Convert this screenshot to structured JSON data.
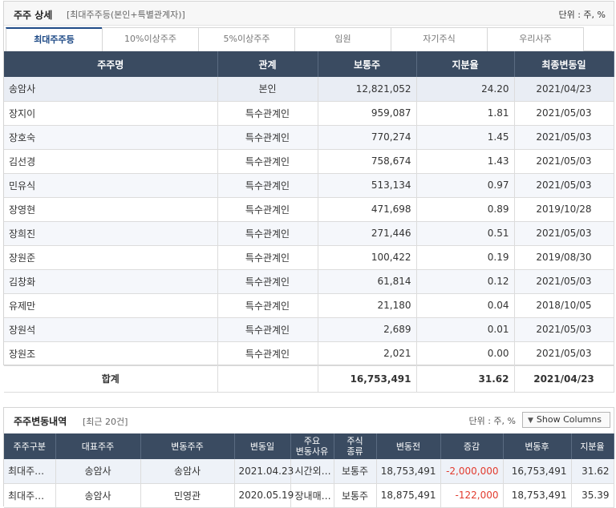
{
  "top": {
    "title": "주주 상세",
    "subtitle": "[최대주주등(본인+특별관계자)]",
    "unit": "단위 : 주, %",
    "tabs": [
      "최대주주등",
      "10%이상주주",
      "5%이상주주",
      "임원",
      "자기주식",
      "우리사주"
    ],
    "columns": [
      "주주명",
      "관계",
      "보통주",
      "지분율",
      "최종변동일"
    ],
    "rows": [
      {
        "name": "송암사",
        "relation": "본인",
        "shares": "12,821,052",
        "ratio": "24.20",
        "date": "2021/04/23"
      },
      {
        "name": "장지이",
        "relation": "특수관계인",
        "shares": "959,087",
        "ratio": "1.81",
        "date": "2021/05/03"
      },
      {
        "name": "장호숙",
        "relation": "특수관계인",
        "shares": "770,274",
        "ratio": "1.45",
        "date": "2021/05/03"
      },
      {
        "name": "김선경",
        "relation": "특수관계인",
        "shares": "758,674",
        "ratio": "1.43",
        "date": "2021/05/03"
      },
      {
        "name": "민유식",
        "relation": "특수관계인",
        "shares": "513,134",
        "ratio": "0.97",
        "date": "2021/05/03"
      },
      {
        "name": "장영현",
        "relation": "특수관계인",
        "shares": "471,698",
        "ratio": "0.89",
        "date": "2019/10/28"
      },
      {
        "name": "장희진",
        "relation": "특수관계인",
        "shares": "271,446",
        "ratio": "0.51",
        "date": "2021/05/03"
      },
      {
        "name": "장원준",
        "relation": "특수관계인",
        "shares": "100,422",
        "ratio": "0.19",
        "date": "2019/08/30"
      },
      {
        "name": "김창화",
        "relation": "특수관계인",
        "shares": "61,814",
        "ratio": "0.12",
        "date": "2021/05/03"
      },
      {
        "name": "유제만",
        "relation": "특수관계인",
        "shares": "21,180",
        "ratio": "0.04",
        "date": "2018/10/05"
      },
      {
        "name": "장원석",
        "relation": "특수관계인",
        "shares": "2,689",
        "ratio": "0.01",
        "date": "2021/05/03"
      },
      {
        "name": "장원조",
        "relation": "특수관계인",
        "shares": "2,021",
        "ratio": "0.00",
        "date": "2021/05/03"
      }
    ],
    "total": {
      "label": "합계",
      "shares": "16,753,491",
      "ratio": "31.62",
      "date": "2021/04/23"
    }
  },
  "history": {
    "title": "주주변동내역",
    "subtitle": "[최근 20건]",
    "unit": "단위 : 주, %",
    "show_columns": "Show Columns",
    "columns": [
      "주주구분",
      "대표주주",
      "변동주주",
      "변동일",
      "주요\n변동사유",
      "주식\n종류",
      "변동전",
      "증감",
      "변동후",
      "지분율"
    ],
    "rows": [
      {
        "type": "최대주…",
        "rep": "송암사",
        "holder": "송암사",
        "date": "2021.04.23",
        "reason": "시간외…",
        "kind": "보통주",
        "before": "18,753,491",
        "change": "-2,000,000",
        "after": "16,753,491",
        "ratio": "31.62"
      },
      {
        "type": "최대주…",
        "rep": "송암사",
        "holder": "민영관",
        "date": "2020.05.19",
        "reason": "장내매…",
        "kind": "보통주",
        "before": "18,875,491",
        "change": "-122,000",
        "after": "18,753,491",
        "ratio": "35.39"
      }
    ]
  },
  "colors": {
    "header_bg": "#3a4b61",
    "accent": "#1e4a86",
    "negative": "#e23b2e"
  }
}
